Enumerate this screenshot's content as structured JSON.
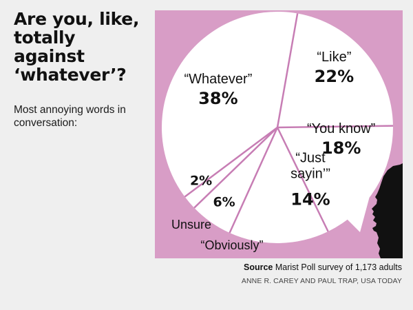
{
  "header": {
    "title": "Are you, like, totally against ‘whatever’?",
    "subtitle": "Most annoying words in conversation:"
  },
  "footer": {
    "source_label": "Source",
    "source_text": "Marist Poll survey of 1,173 adults",
    "credit": "ANNE R. CAREY AND PAUL TRAP, USA TODAY"
  },
  "colors": {
    "background": "#efefef",
    "panel": "#d89dc6",
    "pie_fill": "#ffffff",
    "divider": "#c77db4",
    "silhouette": "#111111"
  },
  "chart_data": {
    "type": "pie",
    "title": "",
    "slices": [
      {
        "label": "“Like”",
        "value": 22,
        "display": "22%"
      },
      {
        "label": "“You know”",
        "value": 18,
        "display": "18%"
      },
      {
        "label": "“Just sayin’”",
        "value": 14,
        "display": "14%"
      },
      {
        "label": "“Obviously”",
        "value": 6,
        "display": "6%"
      },
      {
        "label": "Unsure",
        "value": 2,
        "display": "2%"
      },
      {
        "label": "“Whatever”",
        "value": 38,
        "display": "38%"
      }
    ],
    "start": "top, slightly right of 12 o'clock",
    "direction": "clockwise"
  }
}
